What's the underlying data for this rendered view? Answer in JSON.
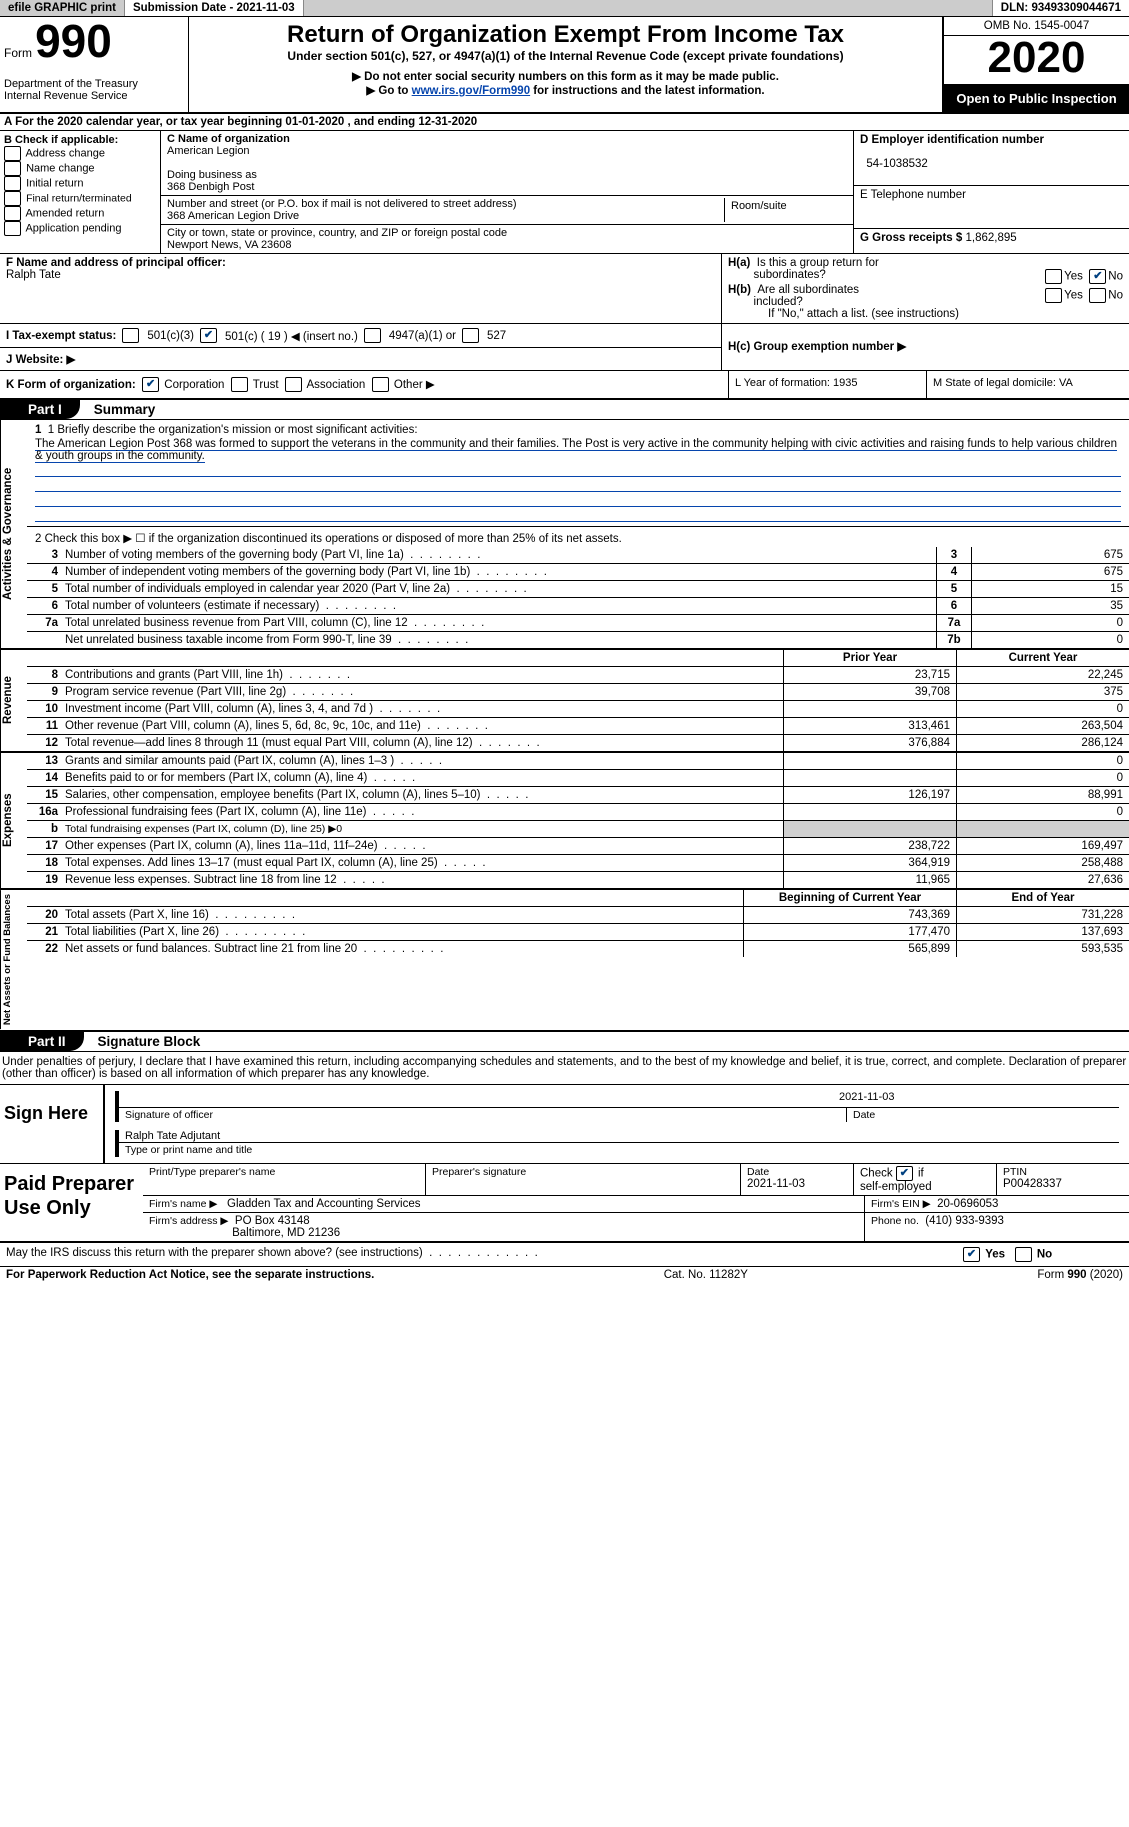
{
  "topbar": {
    "efile": "efile GRAPHIC print",
    "submission": "Submission Date - 2021-11-03",
    "dln": "DLN: 93493309044671"
  },
  "header": {
    "form_prefix": "Form",
    "form_num": "990",
    "dept": "Department of the Treasury",
    "irs": "Internal Revenue Service",
    "title": "Return of Organization Exempt From Income Tax",
    "subtitle": "Under section 501(c), 527, or 4947(a)(1) of the Internal Revenue Code (except private foundations)",
    "note1": "▶ Do not enter social security numbers on this form as it may be made public.",
    "note2_pre": "▶ Go to ",
    "note2_link": "www.irs.gov/Form990",
    "note2_post": " for instructions and the latest information.",
    "omb": "OMB No. 1545-0047",
    "year": "2020",
    "open": "Open to Public Inspection"
  },
  "lineA": "A For the 2020 calendar year, or tax year beginning 01-01-2020   , and ending 12-31-2020",
  "colB": {
    "title": "B Check if applicable:",
    "rows": [
      "Address change",
      "Name change",
      "Initial return",
      "Final return/terminated",
      "Amended return",
      "Application pending"
    ]
  },
  "colC": {
    "name_lbl": "C Name of organization",
    "name": "American Legion",
    "dba_lbl": "Doing business as",
    "dba": "368 Denbigh Post",
    "addr_lbl": "Number and street (or P.O. box if mail is not delivered to street address)",
    "addr": "368 American Legion Drive",
    "room_lbl": "Room/suite",
    "city_lbl": "City or town, state or province, country, and ZIP or foreign postal code",
    "city": "Newport News, VA  23608"
  },
  "colD": {
    "ein_lbl": "D Employer identification number",
    "ein": "54-1038532",
    "tel_lbl": "E Telephone number",
    "gross_lbl": "G Gross receipts $",
    "gross": "1,862,895"
  },
  "f_label": "F Name and address of principal officer:",
  "f_name": "Ralph Tate",
  "h_a": "H(a)  Is this a group return for subordinates?",
  "h_b": "H(b)  Are all subordinates included?",
  "h_no": "No",
  "h_yes": "Yes",
  "h_note": "If \"No,\" attach a list. (see instructions)",
  "h_c": "H(c)  Group exemption number ▶",
  "I_label": "I   Tax-exempt status:",
  "I_opts": [
    "501(c)(3)",
    "501(c) ( 19 ) ◀ (insert no.)",
    "4947(a)(1) or",
    "527"
  ],
  "J_label": "J   Website: ▶",
  "K_label": "K Form of organization:",
  "K_opts": [
    "Corporation",
    "Trust",
    "Association",
    "Other ▶"
  ],
  "L_label": "L Year of formation: 1935",
  "M_label": "M State of legal domicile: VA",
  "part1_tab": "Part I",
  "part1_title": "Summary",
  "gov_label": "Activities & Governance",
  "rev_label": "Revenue",
  "exp_label": "Expenses",
  "net_label": "Net Assets or Fund Balances",
  "q1_head": "1  Briefly describe the organization's mission or most significant activities:",
  "q1_text": "The American Legion Post 368 was formed to support the veterans in the community and their families. The Post is very active in the community helping with civic activities and raising funds to help various children & youth groups in the community.",
  "q2": "2   Check this box ▶ ☐ if the organization discontinued its operations or disposed of more than 25% of its net assets.",
  "gov_rows": [
    {
      "n": "3",
      "d": "Number of voting members of the governing body (Part VI, line 1a)",
      "b": "3",
      "v": "675"
    },
    {
      "n": "4",
      "d": "Number of independent voting members of the governing body (Part VI, line 1b)",
      "b": "4",
      "v": "675"
    },
    {
      "n": "5",
      "d": "Total number of individuals employed in calendar year 2020 (Part V, line 2a)",
      "b": "5",
      "v": "15"
    },
    {
      "n": "6",
      "d": "Total number of volunteers (estimate if necessary)",
      "b": "6",
      "v": "35"
    },
    {
      "n": "7a",
      "d": "Total unrelated business revenue from Part VIII, column (C), line 12",
      "b": "7a",
      "v": "0"
    },
    {
      "n": "",
      "d": "Net unrelated business taxable income from Form 990-T, line 39",
      "b": "7b",
      "v": "0"
    }
  ],
  "col_hdr_prior": "Prior Year",
  "col_hdr_curr": "Current Year",
  "rev_rows": [
    {
      "n": "8",
      "d": "Contributions and grants (Part VIII, line 1h)",
      "p": "23,715",
      "c": "22,245"
    },
    {
      "n": "9",
      "d": "Program service revenue (Part VIII, line 2g)",
      "p": "39,708",
      "c": "375"
    },
    {
      "n": "10",
      "d": "Investment income (Part VIII, column (A), lines 3, 4, and 7d )",
      "p": "",
      "c": "0"
    },
    {
      "n": "11",
      "d": "Other revenue (Part VIII, column (A), lines 5, 6d, 8c, 9c, 10c, and 11e)",
      "p": "313,461",
      "c": "263,504"
    },
    {
      "n": "12",
      "d": "Total revenue—add lines 8 through 11 (must equal Part VIII, column (A), line 12)",
      "p": "376,884",
      "c": "286,124"
    }
  ],
  "exp_rows": [
    {
      "n": "13",
      "d": "Grants and similar amounts paid (Part IX, column (A), lines 1–3 )",
      "p": "",
      "c": "0"
    },
    {
      "n": "14",
      "d": "Benefits paid to or for members (Part IX, column (A), line 4)",
      "p": "",
      "c": "0"
    },
    {
      "n": "15",
      "d": "Salaries, other compensation, employee benefits (Part IX, column (A), lines 5–10)",
      "p": "126,197",
      "c": "88,991"
    },
    {
      "n": "16a",
      "d": "Professional fundraising fees (Part IX, column (A), line 11e)",
      "p": "",
      "c": "0"
    },
    {
      "n": "b",
      "d": "Total fundraising expenses (Part IX, column (D), line 25) ▶0",
      "shade": true
    },
    {
      "n": "17",
      "d": "Other expenses (Part IX, column (A), lines 11a–11d, 11f–24e)",
      "p": "238,722",
      "c": "169,497"
    },
    {
      "n": "18",
      "d": "Total expenses. Add lines 13–17 (must equal Part IX, column (A), line 25)",
      "p": "364,919",
      "c": "258,488"
    },
    {
      "n": "19",
      "d": "Revenue less expenses. Subtract line 18 from line 12",
      "p": "11,965",
      "c": "27,636"
    }
  ],
  "net_hdr_prior": "Beginning of Current Year",
  "net_hdr_curr": "End of Year",
  "net_rows": [
    {
      "n": "20",
      "d": "Total assets (Part X, line 16)",
      "p": "743,369",
      "c": "731,228"
    },
    {
      "n": "21",
      "d": "Total liabilities (Part X, line 26)",
      "p": "177,470",
      "c": "137,693"
    },
    {
      "n": "22",
      "d": "Net assets or fund balances. Subtract line 21 from line 20",
      "p": "565,899",
      "c": "593,535"
    }
  ],
  "part2_tab": "Part II",
  "part2_title": "Signature Block",
  "penalties": "Under penalties of perjury, I declare that I have examined this return, including accompanying schedules and statements, and to the best of my knowledge and belief, it is true, correct, and complete. Declaration of preparer (other than officer) is based on all information of which preparer has any knowledge.",
  "sign_here": "Sign Here",
  "sig_of_officer": "Signature of officer",
  "sig_date": "2021-11-03",
  "date_lbl": "Date",
  "sig_name": "Ralph Tate Adjutant",
  "sig_type": "Type or print name and title",
  "paid_prep": "Paid Preparer Use Only",
  "prep_name_lbl": "Print/Type preparer's name",
  "prep_sig_lbl": "Preparer's signature",
  "prep_date_lbl": "Date",
  "prep_date": "2021-11-03",
  "check_if": "Check ☑ if self-employed",
  "ptin_lbl": "PTIN",
  "ptin": "P00428337",
  "firm_name_lbl": "Firm's name   ▶",
  "firm_name": "Gladden Tax and Accounting Services",
  "firm_ein_lbl": "Firm's EIN ▶",
  "firm_ein": "20-0696053",
  "firm_addr_lbl": "Firm's address ▶",
  "firm_addr1": "PO Box 43148",
  "firm_addr2": "Baltimore, MD  21236",
  "phone_lbl": "Phone no.",
  "phone": "(410) 933-9393",
  "may_irs": "May the IRS discuss this return with the preparer shown above? (see instructions)",
  "footer_l": "For Paperwork Reduction Act Notice, see the separate instructions.",
  "footer_c": "Cat. No. 11282Y",
  "footer_r": "Form 990 (2020)"
}
